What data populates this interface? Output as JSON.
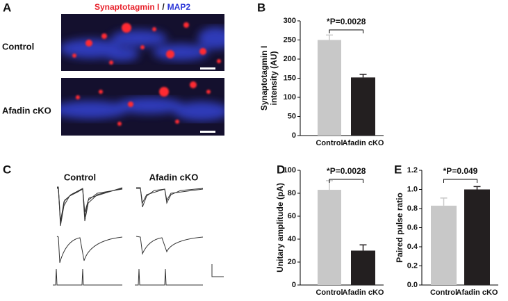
{
  "panel_labels": [
    "A",
    "B",
    "C",
    "D",
    "E"
  ],
  "panel_a": {
    "title_parts": [
      "Synaptotagmin I",
      "/",
      "MAP2"
    ],
    "row_labels": [
      "Control",
      "Afadin cKO"
    ]
  },
  "panel_c": {
    "column_labels": [
      "Control",
      "Afadin cKO"
    ]
  },
  "chart_data": [
    {
      "type": "bar",
      "ylabel": [
        "Synaptotagmin I",
        "intensity (AU)"
      ],
      "annotation": "*P=0.0028",
      "categories": [
        "Control",
        "Afadin cKO"
      ],
      "values": [
        250,
        152
      ],
      "errors": [
        13,
        8
      ],
      "colors": [
        "#c8c8c8",
        "#231f20"
      ],
      "ylim": [
        0,
        300
      ],
      "yticks": [
        0,
        50,
        100,
        150,
        200,
        250,
        300
      ]
    },
    {
      "type": "bar",
      "ylabel": [
        "Unitary amplitude (pA)"
      ],
      "annotation": "*P=0.0028",
      "categories": [
        "Control",
        "Afadin cKO"
      ],
      "values": [
        83,
        30
      ],
      "errors": [
        8,
        5
      ],
      "colors": [
        "#c8c8c8",
        "#231f20"
      ],
      "ylim": [
        0,
        100
      ],
      "yticks": [
        0,
        20,
        40,
        60,
        80,
        100
      ]
    },
    {
      "type": "bar",
      "ylabel": [
        "Paired pulse ratio"
      ],
      "annotation": "*P=0.049",
      "categories": [
        "Control",
        "Afadin cKO"
      ],
      "values": [
        0.83,
        1.0
      ],
      "errors": [
        0.08,
        0.03
      ],
      "colors": [
        "#c8c8c8",
        "#231f20"
      ],
      "ylim": [
        0,
        1.2
      ],
      "yticks": [
        {
          "value": 0,
          "label": "0.0"
        },
        0.2,
        0.4,
        0.6,
        0.8,
        {
          "value": 1.0,
          "label": "1.0"
        },
        1.2
      ]
    }
  ]
}
